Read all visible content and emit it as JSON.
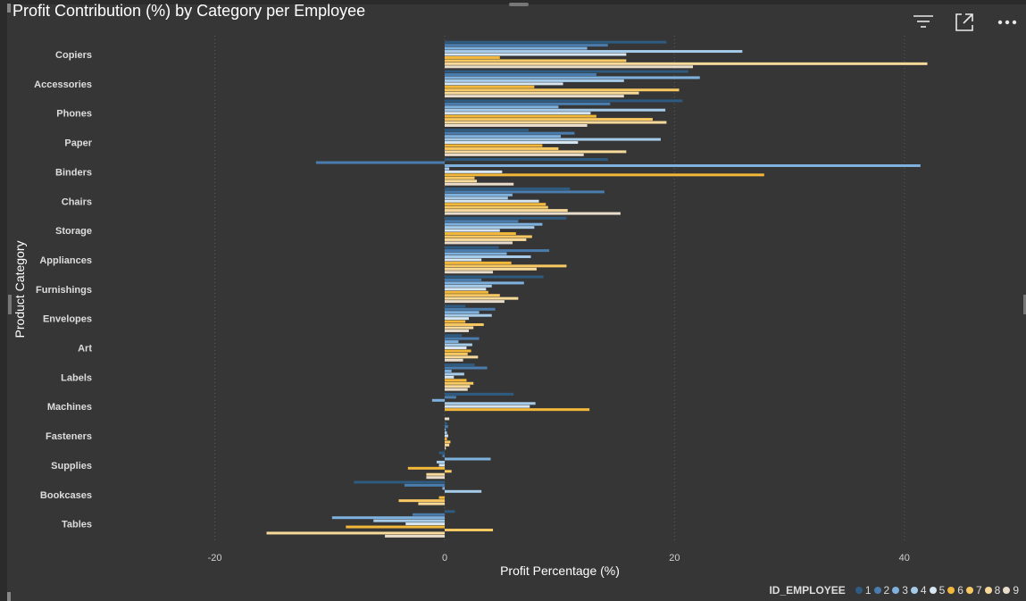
{
  "visual": {
    "title": "Profit Contribution (%) by Category per Employee",
    "toolbar": {
      "filter_icon": "filter-icon",
      "focus_icon": "focus-mode-icon",
      "more_icon": "more-options-icon"
    }
  },
  "legend": {
    "title": "ID_EMPLOYEE",
    "items": [
      {
        "label": "1",
        "color": "#2f5b80"
      },
      {
        "label": "2",
        "color": "#4a7cad"
      },
      {
        "label": "3",
        "color": "#7fb1de"
      },
      {
        "label": "4",
        "color": "#a6cbe9"
      },
      {
        "label": "5",
        "color": "#d6e6f3"
      },
      {
        "label": "6",
        "color": "#f3b83a"
      },
      {
        "label": "7",
        "color": "#f8c862"
      },
      {
        "label": "8",
        "color": "#f7d99a"
      },
      {
        "label": "9",
        "color": "#e9dccb"
      }
    ]
  },
  "chart_data": {
    "type": "bar",
    "orientation": "horizontal",
    "title": "Profit Contribution (%) by Category per Employee",
    "xlabel": "Profit Percentage (%)",
    "ylabel": "Product Category",
    "xlim": [
      -25,
      44
    ],
    "xticks": [
      -20,
      0,
      20,
      40
    ],
    "grid": "vertical-dotted",
    "legend_position": "bottom-right",
    "categories": [
      "Copiers",
      "Accessories",
      "Phones",
      "Paper",
      "Binders",
      "Chairs",
      "Storage",
      "Appliances",
      "Furnishings",
      "Envelopes",
      "Art",
      "Labels",
      "Machines",
      "Fasteners",
      "Supplies",
      "Bookcases",
      "Tables"
    ],
    "series": [
      {
        "name": "1",
        "values": [
          19.3,
          21.2,
          20.7,
          7.3,
          14.2,
          10.9,
          10.6,
          4.7,
          8.6,
          1.8,
          1.5,
          2.6,
          6.0,
          0.2,
          -0.5,
          -7.9,
          0.9
        ]
      },
      {
        "name": "2",
        "values": [
          14.2,
          13.2,
          14.4,
          11.3,
          -11.2,
          13.9,
          6.4,
          9.1,
          3.2,
          4.4,
          3.0,
          3.7,
          1.0,
          0.3,
          -0.2,
          -3.5,
          -2.8
        ]
      },
      {
        "name": "3",
        "values": [
          12.4,
          22.2,
          9.9,
          10.1,
          41.4,
          5.9,
          8.5,
          5.4,
          6.9,
          3.0,
          1.2,
          0.6,
          -1.1,
          0.1,
          4.0,
          -0.2,
          -9.8
        ]
      },
      {
        "name": "4",
        "values": [
          25.9,
          15.6,
          19.2,
          18.8,
          0.4,
          5.5,
          7.8,
          7.5,
          4.1,
          4.1,
          2.4,
          1.7,
          7.9,
          0.2,
          -0.7,
          3.2,
          -6.2
        ]
      },
      {
        "name": "5",
        "values": [
          15.8,
          10.3,
          12.7,
          11.6,
          5.0,
          8.2,
          4.8,
          3.2,
          3.6,
          2.1,
          1.9,
          0.8,
          7.4,
          0.3,
          -0.5,
          0.0,
          -3.4
        ]
      },
      {
        "name": "6",
        "values": [
          4.8,
          7.8,
          13.2,
          8.5,
          27.8,
          8.8,
          6.2,
          5.8,
          3.8,
          1.8,
          2.3,
          1.9,
          12.6,
          0.2,
          -3.2,
          -0.5,
          -8.6
        ]
      },
      {
        "name": "7",
        "values": [
          15.8,
          20.4,
          18.1,
          9.9,
          2.6,
          9.0,
          7.6,
          10.6,
          4.8,
          3.4,
          2.0,
          2.5,
          0.0,
          0.5,
          0.6,
          -4.0,
          4.2
        ]
      },
      {
        "name": "8",
        "values": [
          42.0,
          16.9,
          19.3,
          15.8,
          2.8,
          10.7,
          7.1,
          8.0,
          6.4,
          2.5,
          2.9,
          2.2,
          0.0,
          0.4,
          -1.6,
          -2.3,
          -15.5
        ]
      },
      {
        "name": "9",
        "values": [
          21.6,
          15.6,
          12.4,
          12.1,
          6.0,
          15.3,
          5.9,
          4.2,
          5.2,
          2.1,
          1.6,
          2.0,
          0.4,
          0.1,
          -1.6,
          0.0,
          -5.2
        ]
      }
    ]
  }
}
